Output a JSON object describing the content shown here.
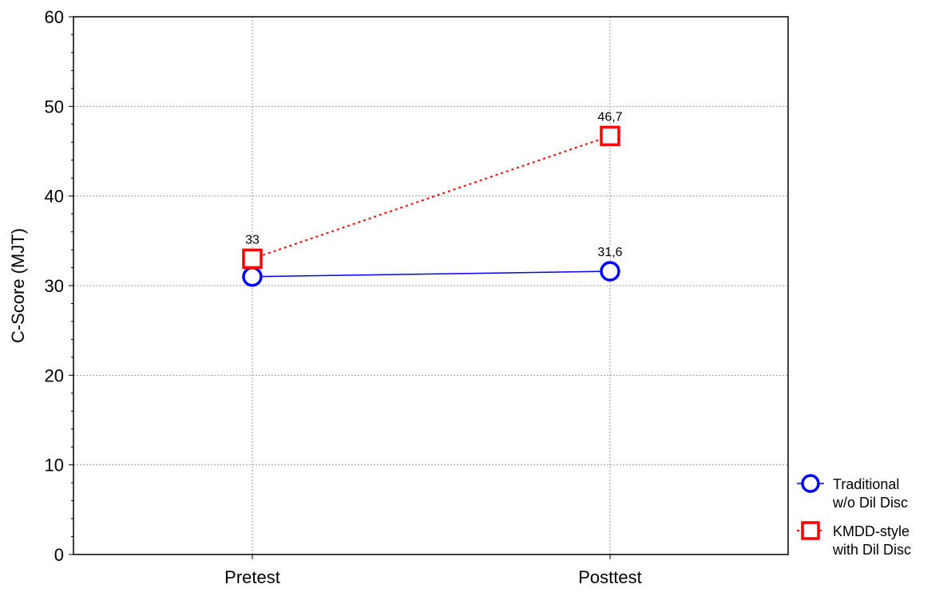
{
  "chart_data": {
    "type": "line",
    "title": "",
    "xlabel": "",
    "ylabel": "C-Score (MJT)",
    "categories": [
      "Pretest",
      "Posttest"
    ],
    "ylim": [
      0,
      60
    ],
    "yticks": [
      0,
      10,
      20,
      30,
      40,
      50,
      60
    ],
    "grid": true,
    "legend_position": "right-bottom",
    "series": [
      {
        "name": "Traditional w/o Dil Disc",
        "legend_lines": [
          "Traditional",
          "w/o Dil Disc"
        ],
        "values": [
          31,
          31.6
        ],
        "point_labels": [
          "",
          "31,6"
        ],
        "color": "#0000ff",
        "marker": "circle",
        "line_style": "solid"
      },
      {
        "name": "KMDD-style with Dil Disc",
        "legend_lines": [
          "KMDD-style",
          "with Dil Disc"
        ],
        "values": [
          33,
          46.7
        ],
        "point_labels": [
          "33",
          "46,7"
        ],
        "color": "#ff0000",
        "marker": "square",
        "line_style": "dotted"
      }
    ]
  }
}
